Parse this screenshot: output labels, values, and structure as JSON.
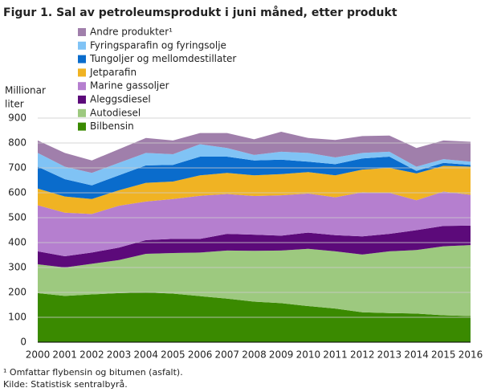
{
  "chart_data": {
    "type": "stacked_area",
    "title": "Figur 1. Sal av petroleumsprodukt i juni måned, etter produkt",
    "y_label": [
      "Millionar",
      "liter"
    ],
    "categories": [
      "2000",
      "2001",
      "2002",
      "2003",
      "2004",
      "2005",
      "2006",
      "2007",
      "2008",
      "2009",
      "2010",
      "2011",
      "2012",
      "2013",
      "2014",
      "2015",
      "2016"
    ],
    "series": [
      {
        "name": "Bilbensin",
        "color": "#3a8a00",
        "values": [
          197,
          186,
          192,
          197,
          200,
          195,
          185,
          175,
          163,
          157,
          145,
          135,
          120,
          117,
          115,
          108,
          105
        ]
      },
      {
        "name": "Autodiesel",
        "color": "#9dc97f",
        "values": [
          116,
          114,
          123,
          133,
          155,
          163,
          175,
          193,
          204,
          211,
          230,
          230,
          232,
          248,
          255,
          277,
          285
        ]
      },
      {
        "name": "Aleggsdiesel",
        "color": "#5c0a7a",
        "values": [
          52,
          45,
          45,
          50,
          55,
          57,
          55,
          67,
          65,
          60,
          65,
          65,
          73,
          70,
          80,
          82,
          78
        ]
      },
      {
        "name": "Marine gassoljer",
        "color": "#b57fcf",
        "values": [
          185,
          175,
          155,
          168,
          155,
          160,
          173,
          160,
          155,
          162,
          157,
          152,
          177,
          165,
          120,
          138,
          124
        ]
      },
      {
        "name": "Jetparafin",
        "color": "#f0b323",
        "values": [
          67,
          65,
          60,
          62,
          75,
          70,
          82,
          85,
          83,
          85,
          86,
          88,
          91,
          100,
          108,
          103,
          113
        ]
      },
      {
        "name": "Tungoljer og mellomdestillater",
        "color": "#0a6ccc",
        "values": [
          88,
          70,
          55,
          60,
          70,
          67,
          75,
          65,
          60,
          58,
          42,
          45,
          45,
          45,
          10,
          12,
          7
        ]
      },
      {
        "name": "Fyringsparafin og fyringsolje",
        "color": "#80c3f5",
        "values": [
          55,
          50,
          50,
          50,
          50,
          43,
          50,
          35,
          22,
          32,
          35,
          27,
          22,
          20,
          17,
          15,
          13
        ]
      },
      {
        "name": "Andre produkter¹",
        "color": "#a07fab",
        "values": [
          50,
          55,
          50,
          55,
          60,
          55,
          45,
          60,
          63,
          80,
          60,
          70,
          68,
          65,
          75,
          75,
          80
        ]
      }
    ],
    "ylim": [
      0,
      900
    ],
    "yticks": [
      0,
      100,
      200,
      300,
      400,
      500,
      600,
      700,
      800,
      900
    ],
    "grid": true,
    "notes": [
      "¹ Omfattar flybensin og bitumen (asfalt).",
      "Kilde: Statistisk sentralbyrå."
    ]
  }
}
